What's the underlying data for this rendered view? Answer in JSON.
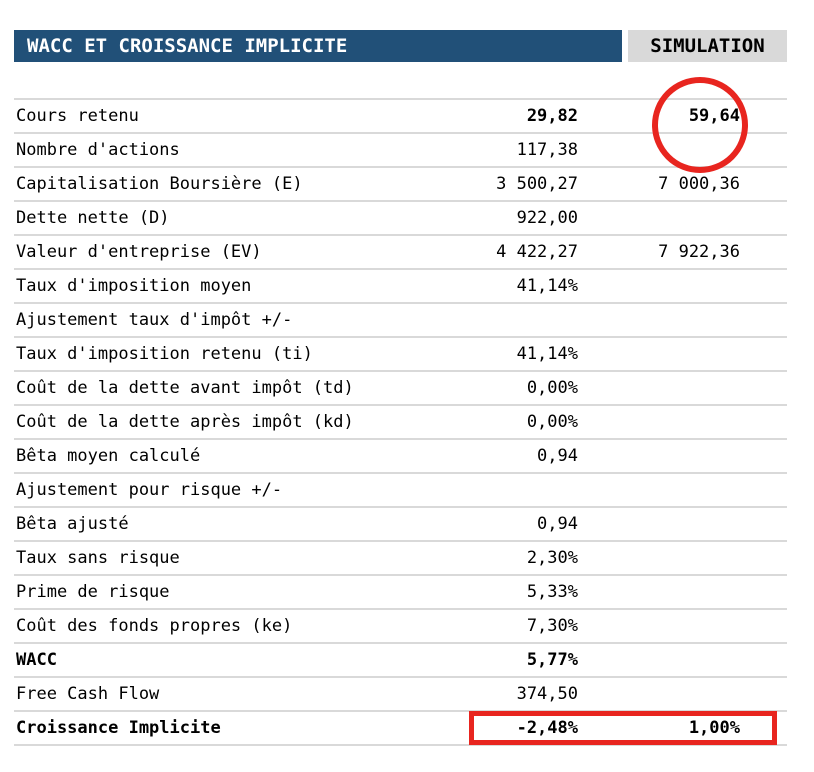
{
  "header": {
    "title": "WACC ET CROISSANCE IMPLICITE",
    "simulation_label": "SIMULATION"
  },
  "colors": {
    "header_bg": "#215078",
    "header_text": "#FFFFFF",
    "sim_bg": "#D9D9D9",
    "line_color": "#D9D9D9",
    "annotation_red": "#E8251F"
  },
  "rows": [
    {
      "label": "Cours retenu",
      "value": "29,82",
      "simulation": "59,64"
    },
    {
      "label": "Nombre d'actions",
      "value": "117,38",
      "simulation": ""
    },
    {
      "label": "Capitalisation Boursière (E)",
      "value": "3 500,27",
      "simulation": "7 000,36"
    },
    {
      "label": "Dette nette (D)",
      "value": "922,00",
      "simulation": ""
    },
    {
      "label": "Valeur d'entreprise (EV)",
      "value": "4 422,27",
      "simulation": "7 922,36"
    },
    {
      "label": "Taux d'imposition moyen",
      "value": "41,14%",
      "simulation": ""
    },
    {
      "label": "Ajustement taux d'impôt +/-",
      "value": "",
      "simulation": ""
    },
    {
      "label": "Taux d'imposition retenu (ti)",
      "value": "41,14%",
      "simulation": ""
    },
    {
      "label": "Coût de la dette avant impôt (td)",
      "value": "0,00%",
      "simulation": ""
    },
    {
      "label": "Coût de la dette après impôt (kd)",
      "value": "0,00%",
      "simulation": ""
    },
    {
      "label": "Bêta moyen calculé",
      "value": "0,94",
      "simulation": ""
    },
    {
      "label": "Ajustement pour risque +/-",
      "value": "",
      "simulation": ""
    },
    {
      "label": "Bêta ajusté",
      "value": "0,94",
      "simulation": ""
    },
    {
      "label": "Taux sans risque",
      "value": "2,30%",
      "simulation": ""
    },
    {
      "label": "Prime de risque",
      "value": "5,33%",
      "simulation": ""
    },
    {
      "label": "Coût des fonds propres (ke)",
      "value": "7,30%",
      "simulation": ""
    },
    {
      "label": "WACC",
      "value": "5,77%",
      "simulation": ""
    },
    {
      "label": "Free Cash Flow",
      "value": "374,50",
      "simulation": ""
    },
    {
      "label": "Croissance Implicite",
      "value": "-2,48%",
      "simulation": "1,00%"
    }
  ],
  "annotations": {
    "circle_target_value": "59,64",
    "box_target_values": [
      "-2,48%",
      "1,00%"
    ]
  }
}
